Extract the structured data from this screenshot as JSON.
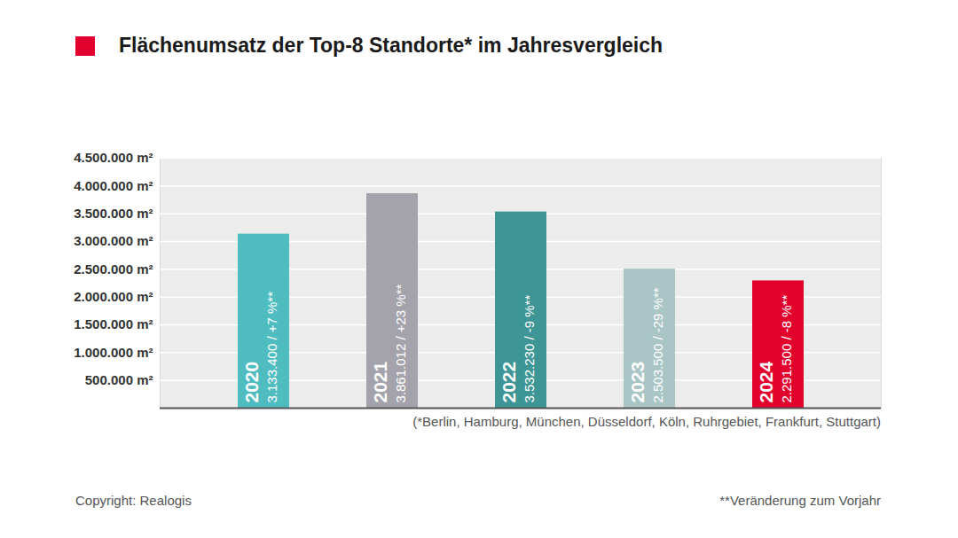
{
  "chart_data": {
    "type": "bar",
    "title": "Flächenumsatz der Top-8 Standorte* im Jahresvergleich",
    "categories": [
      "2020",
      "2021",
      "2022",
      "2023",
      "2024"
    ],
    "values": [
      3133400,
      3861012,
      3532230,
      2503500,
      2291500
    ],
    "value_labels": [
      "3.133.400 / +7 %**",
      "3.861.012 / +23 %**",
      "3.532.230 / -9 %**",
      "2.503.500 / -29 %**",
      "2.291.500 / -8 %**"
    ],
    "colors": [
      "#4fbdc0",
      "#a4a3ab",
      "#3e9595",
      "#a9c5c6",
      "#e2022e"
    ],
    "ylim": [
      0,
      4500000
    ],
    "yticks": [
      {
        "value": 500000,
        "label": "500.000 m²"
      },
      {
        "value": 1000000,
        "label": "1.000.000 m²"
      },
      {
        "value": 1500000,
        "label": "1.500.000 m²"
      },
      {
        "value": 2000000,
        "label": "2.000.000 m²"
      },
      {
        "value": 2500000,
        "label": "2.500.000 m²"
      },
      {
        "value": 3000000,
        "label": "3.000.000 m²"
      },
      {
        "value": 3500000,
        "label": "3.500.000 m²"
      },
      {
        "value": 4000000,
        "label": "4.000.000 m²"
      },
      {
        "value": 4500000,
        "label": "4.500.000 m²"
      }
    ],
    "grid": true,
    "data_labels": true,
    "tick_labels": "y",
    "annotations": [
      "(*Berlin, Hamburg, München, Düsseldorf, Köln, Ruhrgebiet, Frankfurt, Stuttgart)",
      "Copyright: Realogis",
      "**Veränderung zum Vorjahr"
    ]
  }
}
